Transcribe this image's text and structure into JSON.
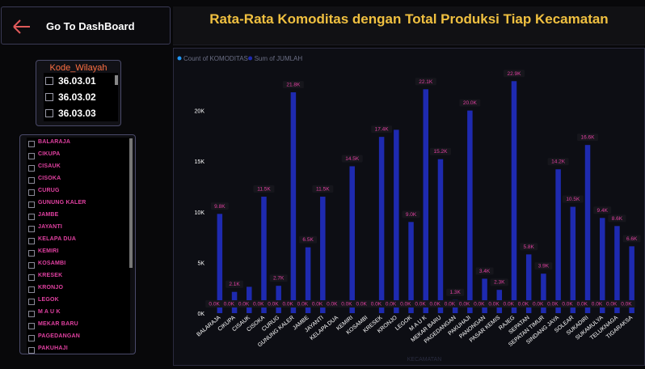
{
  "nav": {
    "label": "Go To DashBoard"
  },
  "title": "Rata-Rata Komoditas dengan Total Produksi Tiap Kecamatan",
  "kode_filter": {
    "header": "Kode_Wilayah",
    "items": [
      "36.03.01",
      "36.03.02",
      "36.03.03"
    ]
  },
  "kecamatan_filter": {
    "items": [
      "BALARAJA",
      "CIKUPA",
      "CISAUK",
      "CISOKA",
      "CURUG",
      "GUNUNG KALER",
      "JAMBE",
      "JAYANTI",
      "KELAPA DUA",
      "KEMIRI",
      "KOSAMBI",
      "KRESEK",
      "KRONJO",
      "LEGOK",
      "M A U K",
      "MEKAR BARU",
      "PAGEDANGAN",
      "PAKUHAJI"
    ]
  },
  "colors": {
    "accent_title": "#f0c040",
    "bar": "#1e2ab0",
    "label_text": "#e040a0",
    "filter_header": "#ff7043"
  },
  "chart_data": {
    "type": "bar",
    "categories": [
      "BALARAJA",
      "CIKUPA",
      "CISAUK",
      "CISOKA",
      "CURUG",
      "GUNUNG KALER",
      "JAMBE",
      "JAYANTI",
      "KELAPA DUA",
      "KEMIRI",
      "KOSAMBI",
      "KRESEK",
      "KRONJO",
      "LEGOK",
      "M A U K",
      "MEKAR BARU",
      "PAGEDANGAN",
      "PAKUHAJI",
      "PANONGAN",
      "PASAR KEMIS",
      "RAJEG",
      "SEPATAN",
      "SEPATAN TIMUR",
      "SINDANG JAYA",
      "SOLEAR",
      "SUKADIRI",
      "SUKAMULYA",
      "TELUKNAGA",
      "TIGARAKSA"
    ],
    "series": [
      {
        "name": "Count of KOMODITAS",
        "values": [
          0,
          0,
          0,
          0,
          0,
          0,
          0,
          0,
          0,
          0,
          0,
          0,
          0,
          0,
          0,
          0,
          0,
          0,
          0,
          0,
          0,
          0,
          0,
          0,
          0,
          0,
          0,
          0,
          0
        ],
        "labels": [
          "0.0K",
          "0.0K",
          "0.0K",
          "0.0K",
          "0.0K",
          "0.0K",
          "0.0K",
          "0.0K",
          "0.0K",
          "0.0K",
          "0.0K",
          "0.0K",
          "0.0K",
          "0.0K",
          "0.0K",
          "0.0K",
          "0.0K",
          "0.0K",
          "0.0K",
          "0.0K",
          "0.0K",
          "0.0K",
          "0.0K",
          "0.0K",
          "0.0K",
          "0.0K",
          "0.0K",
          "0.0K",
          "0.0K"
        ]
      },
      {
        "name": "Sum of JUMLAH",
        "values": [
          9800,
          2100,
          2600,
          11500,
          2700,
          21800,
          6500,
          11500,
          0,
          14500,
          0,
          17400,
          18100,
          9000,
          22100,
          15200,
          1300,
          20000,
          3400,
          2300,
          22900,
          5800,
          3900,
          14200,
          10500,
          16600,
          9400,
          8600,
          6600
        ],
        "labels": [
          "9.8K",
          "2.1K",
          "",
          "11.5K",
          "2.7K",
          "21.8K",
          "6.5K",
          "11.5K",
          "",
          "14.5K",
          "",
          "17.4K",
          "",
          "9.0K",
          "22.1K",
          "15.2K",
          "1.3K",
          "20.0K",
          "3.4K",
          "2.3K",
          "22.9K",
          "5.8K",
          "3.9K",
          "14.2K",
          "10.5K",
          "16.6K",
          "9.4K",
          "8.6K",
          "6.6K"
        ]
      }
    ],
    "ylim": [
      0,
      25000
    ],
    "yticks": [
      0,
      5000,
      10000,
      15000,
      20000
    ],
    "ytick_labels": [
      "0K",
      "5K",
      "10K",
      "15K",
      "20K"
    ],
    "xlabel": "KECAMATAN",
    "legend": "top-left"
  }
}
